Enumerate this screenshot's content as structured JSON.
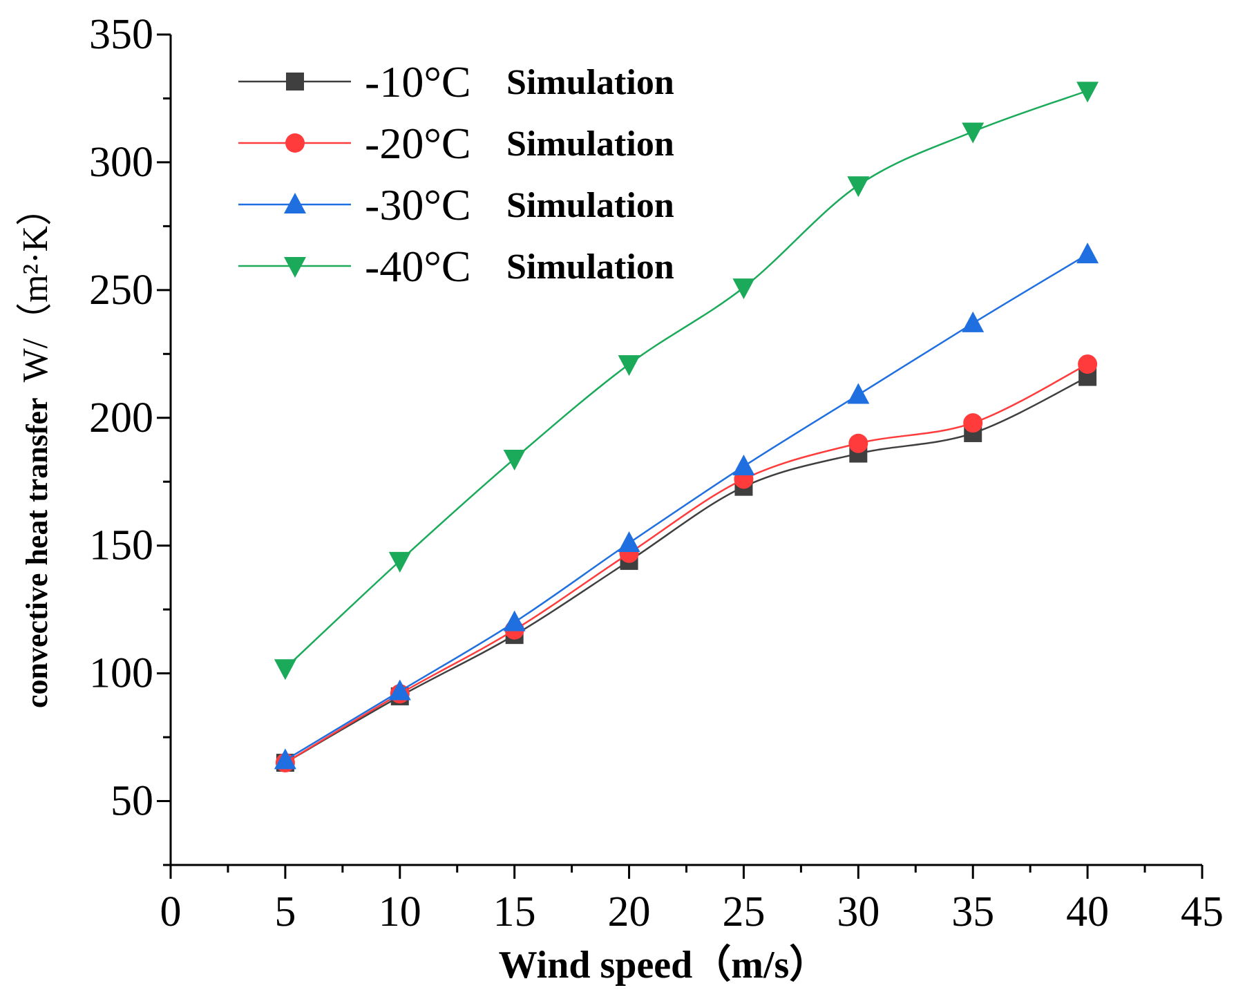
{
  "chart_data": {
    "type": "line",
    "title": "",
    "xlabel": "Wind speed（m/s）",
    "ylabel_bold": "convective heat transfer",
    "ylabel_units": "W/（m²·K）",
    "xlim": [
      0,
      45
    ],
    "ylim": [
      25,
      350
    ],
    "x_ticks": [
      0,
      5,
      10,
      15,
      20,
      25,
      30,
      35,
      40,
      45
    ],
    "y_ticks": [
      50,
      100,
      150,
      200,
      250,
      300,
      350
    ],
    "x_tick_labels": [
      "0",
      "5",
      "10",
      "15",
      "20",
      "25",
      "30",
      "35",
      "40",
      "45"
    ],
    "y_tick_labels": [
      "50",
      "100",
      "150",
      "200",
      "250",
      "300",
      "350"
    ],
    "x": [
      5,
      10,
      15,
      20,
      25,
      30,
      35,
      40
    ],
    "legend_position": "top-left",
    "series": [
      {
        "name": "-10°C Simulation",
        "temp": "-10°C",
        "label": "Simulation",
        "color": "#3f3f3f",
        "marker": "square",
        "values": [
          65,
          91,
          115,
          144,
          173,
          186,
          194,
          216
        ]
      },
      {
        "name": "-20°C Simulation",
        "temp": "-20°C",
        "label": "Simulation",
        "color": "#ff3b3b",
        "marker": "circle",
        "values": [
          65,
          92,
          117,
          147,
          176,
          190,
          198,
          221
        ]
      },
      {
        "name": "-30°C Simulation",
        "temp": "-30°C",
        "label": "Simulation",
        "color": "#1f6fe0",
        "marker": "triangle-up",
        "values": [
          66,
          93,
          120,
          151,
          181,
          209,
          237,
          264
        ]
      },
      {
        "name": "-40°C Simulation",
        "temp": "-40°C",
        "label": "Simulation",
        "color": "#1aaa5a",
        "marker": "triangle-down",
        "values": [
          102,
          144,
          184,
          221,
          251,
          291,
          312,
          328
        ]
      }
    ]
  }
}
